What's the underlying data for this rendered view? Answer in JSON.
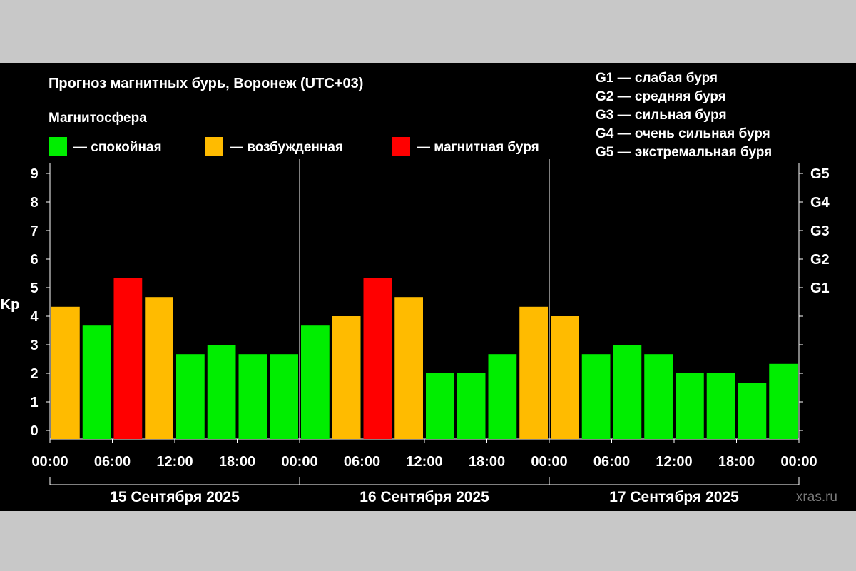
{
  "chart_data": {
    "type": "bar",
    "title": "Прогноз магнитных бурь, Воронеж (UTC+03)",
    "legend_heading": "Магнитосфера",
    "legend": [
      {
        "label": "— спокойная",
        "color": "#00ee00"
      },
      {
        "label": "— возбужденная",
        "color": "#ffbb00"
      },
      {
        "label": "— магнитная буря",
        "color": "#ff0000"
      }
    ],
    "g_scale": [
      "G1 — слабая буря",
      "G2 — средняя буря",
      "G3 — сильная буря",
      "G4 — очень сильная буря",
      "G5 — экстремальная буря"
    ],
    "ylabel": "Kp",
    "ylim": [
      0,
      9
    ],
    "y_ticks": [
      "0",
      "1",
      "2",
      "3",
      "4",
      "5",
      "6",
      "7",
      "8",
      "9"
    ],
    "right_ticks": [
      {
        "value": 5,
        "label": "G1"
      },
      {
        "value": 6,
        "label": "G2"
      },
      {
        "value": 7,
        "label": "G3"
      },
      {
        "value": 8,
        "label": "G4"
      },
      {
        "value": 9,
        "label": "G5"
      }
    ],
    "x_tick_labels": [
      "00:00",
      "06:00",
      "12:00",
      "18:00",
      "00:00",
      "06:00",
      "12:00",
      "18:00",
      "00:00",
      "06:00",
      "12:00",
      "18:00",
      "00:00"
    ],
    "days": [
      "15 Сентября 2025",
      "16 Сентября 2025",
      "17 Сентября 2025"
    ],
    "values": [
      4.33,
      3.67,
      5.33,
      4.67,
      2.67,
      3.0,
      2.67,
      2.67,
      3.67,
      4.0,
      5.33,
      4.67,
      2.0,
      2.0,
      2.67,
      4.33,
      4.0,
      2.67,
      3.0,
      2.67,
      2.0,
      2.0,
      1.67,
      2.33
    ],
    "colors": {
      "quiet": "#00ee00",
      "active": "#ffbb00",
      "storm": "#ff0000"
    },
    "watermark": "xras.ru"
  }
}
